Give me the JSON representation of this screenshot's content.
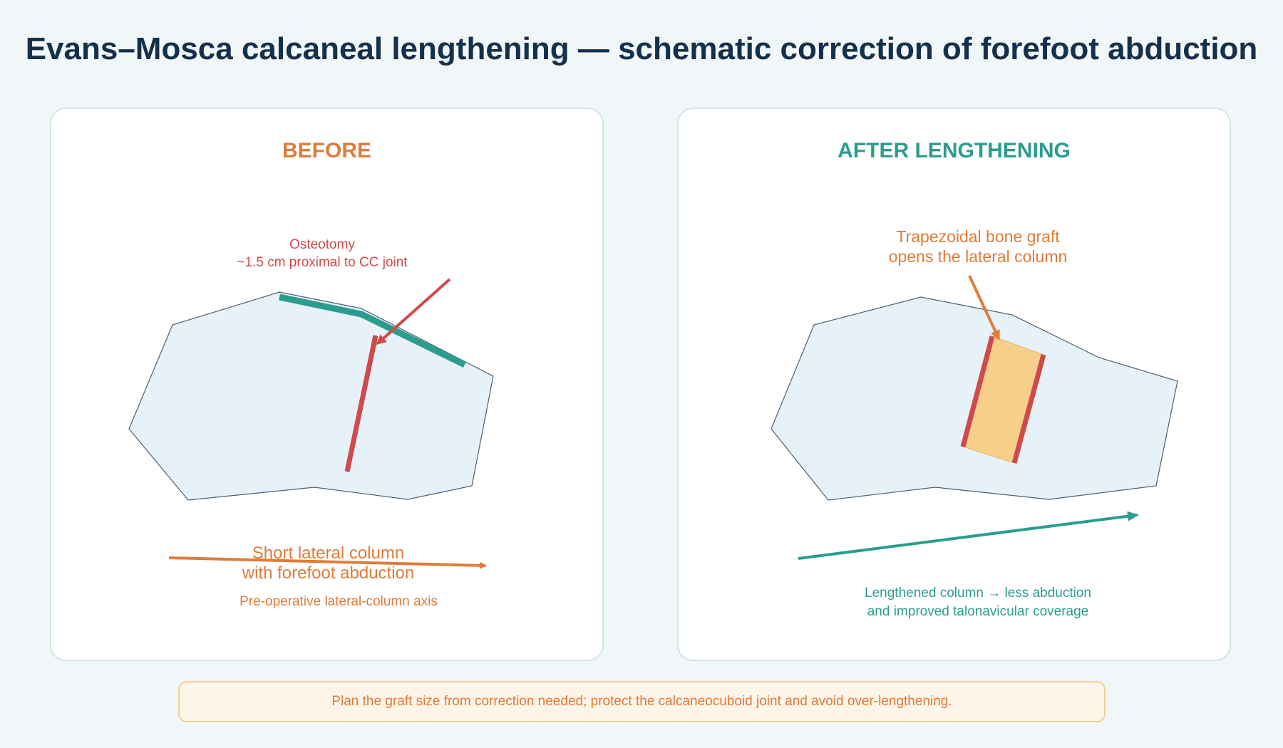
{
  "title": "Evans–Mosca calcaneal lengthening — schematic correction of forefoot abduction",
  "colors": {
    "background": "#f1f6f9",
    "bone_fill": "#e7f1f8",
    "bone_outline": "#4b6072",
    "before_accent": "#e07b39",
    "after_accent": "#2a9d8f",
    "osteotomy_red": "#cf4a4a",
    "graft_fill": "#f6d08b"
  },
  "before": {
    "heading": "BEFORE",
    "osteotomy_label_line1": "Osteotomy",
    "osteotomy_label_line2": "~1.5 cm proximal to CC joint",
    "caption_line1": "Short lateral column",
    "caption_line2": "with forefoot abduction",
    "axis_label": "Pre-operative lateral-column axis"
  },
  "after": {
    "heading": "AFTER LENGTHENING",
    "graft_label_line1": "Trapezoidal bone graft",
    "graft_label_line2": "opens the lateral column",
    "caption_line1": "Lengthened column → less abduction",
    "caption_line2": "and improved talonavicular coverage"
  },
  "note": "Plan the graft size from correction needed; protect the calcaneocuboid joint and avoid over-lengthening."
}
